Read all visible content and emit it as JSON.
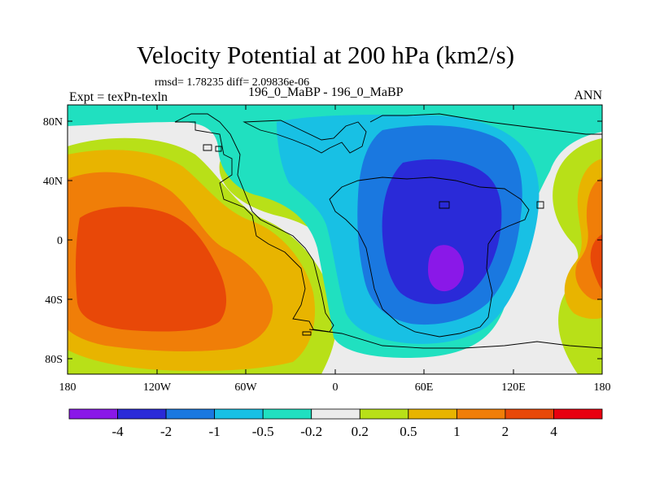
{
  "chart_data": {
    "type": "heatmap",
    "title": "Velocity Potential at 200 hPa (km2/s)",
    "stats_text": "rmsd= 1.78235 diff= 2.09836e-06",
    "left_label": "Expt = texPn-texln",
    "center_label": "196_0_MaBP - 196_0_MaBP",
    "right_label": "ANN",
    "x_ticks": [
      "180",
      "120W",
      "60W",
      "0",
      "60E",
      "120E",
      "180"
    ],
    "y_ticks": [
      "80N",
      "40N",
      "0",
      "40S",
      "80S"
    ],
    "colorbar": {
      "labels": [
        "-4",
        "-2",
        "-1",
        "-0.5",
        "-0.2",
        "0.2",
        "0.5",
        "1",
        "2",
        "4"
      ],
      "colors": [
        "#8a18e8",
        "#2a2ad8",
        "#1a78e0",
        "#18c0e4",
        "#20e0c0",
        "#ececec",
        "#b8e018",
        "#e8b400",
        "#f07e08",
        "#e84808",
        "#e80010"
      ]
    },
    "fill_colors": {
      "background": "#b8e018",
      "min_core": "#8a18e8",
      "strong_negative": "#2a2ad8",
      "negative": "#1a78e0",
      "weak_negative": "#18c0e4",
      "near_zero_negative": "#20e0c0",
      "near_zero": "#ececec",
      "weak_positive": "#b8e018",
      "positive": "#e8b400",
      "strong_positive": "#f07e08",
      "max_core": "#e84808"
    }
  }
}
